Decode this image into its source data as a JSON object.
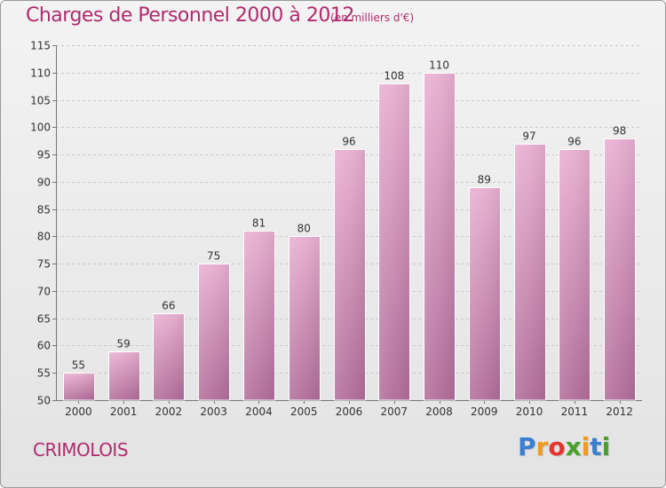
{
  "chart_data": {
    "type": "bar",
    "title": "Charges de Personnel 2000 à 2012",
    "subtitle": "(en milliers d'€)",
    "categories": [
      "2000",
      "2001",
      "2002",
      "2003",
      "2004",
      "2005",
      "2006",
      "2007",
      "2008",
      "2009",
      "2010",
      "2011",
      "2012"
    ],
    "values": [
      55,
      59,
      66,
      75,
      81,
      80,
      96,
      108,
      110,
      89,
      97,
      96,
      98
    ],
    "ylim": [
      50,
      115
    ],
    "yticks": [
      50,
      55,
      60,
      65,
      70,
      75,
      80,
      85,
      90,
      95,
      100,
      105,
      110,
      115
    ],
    "grid": true,
    "xlabel": "",
    "ylabel": "",
    "bar_color_top": "#e8aed0",
    "bar_color_bottom": "#b06c98",
    "accent_color": "#b02a6e"
  },
  "commune": "CRIMOLOIS",
  "logo": {
    "letters": [
      "P",
      "r",
      "o",
      "x",
      "i",
      "t",
      "i"
    ],
    "colors": [
      "#3a7fd0",
      "#f29a1e",
      "#e3342f",
      "#4aa02c",
      "#f29a1e",
      "#3a7fd0",
      "#4aa02c"
    ]
  }
}
